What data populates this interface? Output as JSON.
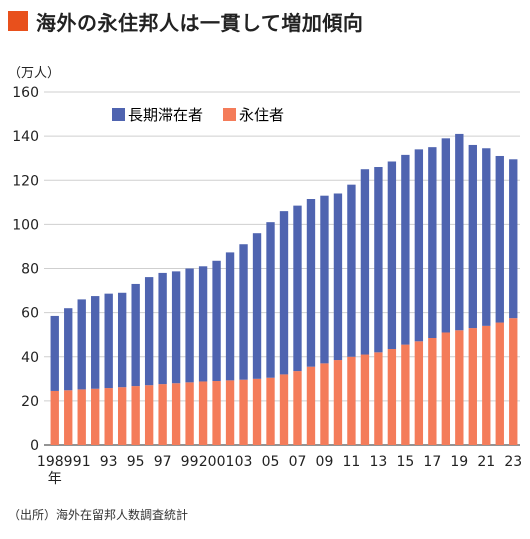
{
  "headline": "海外の永住邦人は一貫して増加傾向",
  "accent_color": "#e8501c",
  "unit": "（万人）",
  "source": "（出所）海外在留邦人数調査統計",
  "chart_data": {
    "type": "bar",
    "stacked": true,
    "title": "",
    "xlabel": "",
    "ylabel": "",
    "ylim": [
      0,
      160
    ],
    "yticks": [
      0,
      20,
      40,
      60,
      80,
      100,
      120,
      140,
      160
    ],
    "grid": true,
    "legend_position": "top-left",
    "categories": [
      "1989",
      "1990",
      "1991",
      "1992",
      "1993",
      "1994",
      "1995",
      "1996",
      "1997",
      "1998",
      "1999",
      "2000",
      "2001",
      "2002",
      "2003",
      "2004",
      "2005",
      "2006",
      "2007",
      "2008",
      "2009",
      "2010",
      "2011",
      "2012",
      "2013",
      "2014",
      "2015",
      "2016",
      "2017",
      "2018",
      "2019",
      "2020",
      "2021",
      "2022",
      "2023"
    ],
    "x_tick_labels": [
      {
        "index": 0,
        "text": "1989"
      },
      {
        "index": 2,
        "text": "91"
      },
      {
        "index": 4,
        "text": "93"
      },
      {
        "index": 6,
        "text": "95"
      },
      {
        "index": 8,
        "text": "97"
      },
      {
        "index": 10,
        "text": "99"
      },
      {
        "index": 12,
        "text": "2001"
      },
      {
        "index": 14,
        "text": "03"
      },
      {
        "index": 16,
        "text": "05"
      },
      {
        "index": 18,
        "text": "07"
      },
      {
        "index": 20,
        "text": "09"
      },
      {
        "index": 22,
        "text": "11"
      },
      {
        "index": 24,
        "text": "13"
      },
      {
        "index": 26,
        "text": "15"
      },
      {
        "index": 28,
        "text": "17"
      },
      {
        "index": 30,
        "text": "19"
      },
      {
        "index": 32,
        "text": "21"
      },
      {
        "index": 34,
        "text": "23"
      }
    ],
    "year_suffix": "年",
    "series": [
      {
        "name": "永住者",
        "color": "#f47c5a",
        "values": [
          24.5,
          24.8,
          25.2,
          25.5,
          25.8,
          26.2,
          26.7,
          27.1,
          27.6,
          28.0,
          28.4,
          28.8,
          29.0,
          29.3,
          29.6,
          30.0,
          30.5,
          32.0,
          33.5,
          35.5,
          37.0,
          38.5,
          40.0,
          41.0,
          42.0,
          43.5,
          45.5,
          47.0,
          48.5,
          51.0,
          52.0,
          53.0,
          54.0,
          55.5,
          57.5
        ]
      },
      {
        "name": "長期滞在者",
        "color": "#4f64b0",
        "values": [
          34.0,
          37.2,
          40.8,
          42.0,
          42.8,
          42.8,
          46.3,
          49.0,
          50.4,
          50.7,
          51.6,
          52.2,
          54.5,
          58.0,
          61.4,
          66.0,
          70.5,
          74.0,
          75.0,
          76.0,
          76.0,
          75.5,
          78.0,
          84.0,
          84.0,
          85.0,
          86.0,
          87.0,
          86.5,
          88.0,
          89.0,
          83.0,
          80.5,
          75.5,
          72.0
        ]
      }
    ]
  }
}
